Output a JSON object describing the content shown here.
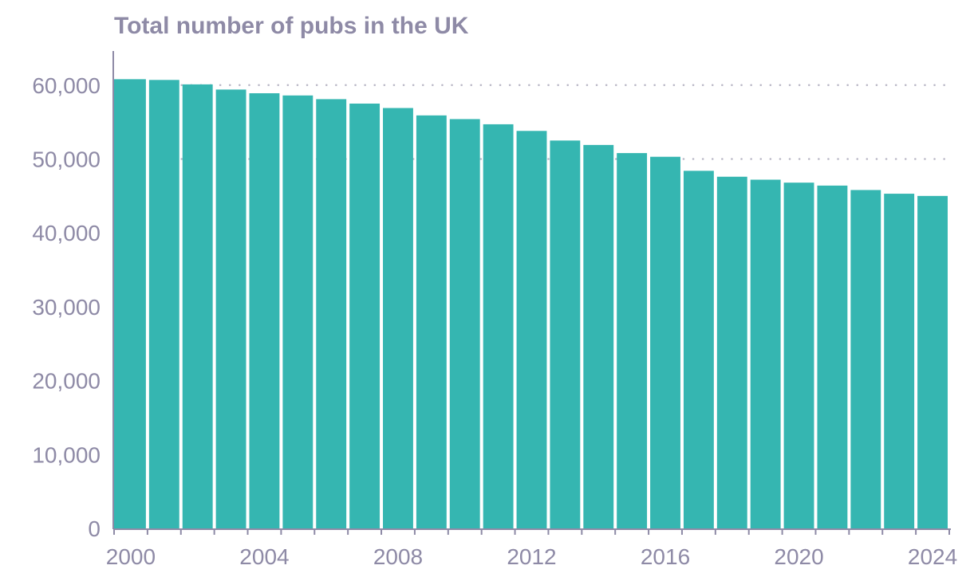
{
  "colors": {
    "bar": "#35b6b1",
    "text": "#8e8aa6",
    "axis": "#8e8aa6",
    "grid": "#b9b7c6"
  },
  "chart_data": {
    "type": "bar",
    "title": "Total number of pubs in the UK",
    "xlabel": "",
    "ylabel": "",
    "categories": [
      "2000",
      "2001",
      "2002",
      "2003",
      "2004",
      "2005",
      "2006",
      "2007",
      "2008",
      "2009",
      "2010",
      "2011",
      "2012",
      "2013",
      "2014",
      "2015",
      "2016",
      "2017",
      "2018",
      "2019",
      "2020",
      "2021",
      "2022",
      "2023",
      "2024"
    ],
    "values": [
      60800,
      60700,
      60100,
      59400,
      58900,
      58600,
      58100,
      57500,
      56900,
      55900,
      55400,
      54700,
      53800,
      52500,
      51900,
      50800,
      50300,
      48400,
      47600,
      47200,
      46800,
      46400,
      45800,
      45300,
      45000
    ],
    "ylim": [
      0,
      65000
    ],
    "y_ticks": [
      0,
      10000,
      20000,
      30000,
      40000,
      50000,
      60000
    ],
    "y_tick_labels": [
      "0",
      "10,000",
      "20,000",
      "30,000",
      "40,000",
      "50,000",
      "60,000"
    ],
    "x_tick_labels": [
      "2000",
      "2004",
      "2008",
      "2012",
      "2016",
      "2020",
      "2024"
    ],
    "dotted_gridlines_at": [
      50000,
      60000
    ],
    "legend": "none"
  }
}
